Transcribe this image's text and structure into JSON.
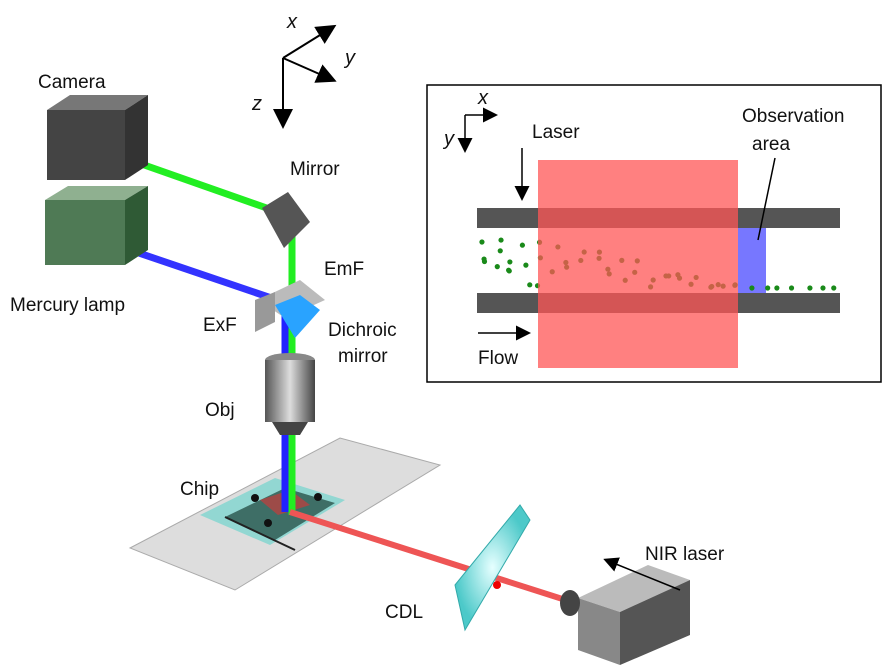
{
  "axes": {
    "x": "x",
    "y": "y",
    "z": "z"
  },
  "labels": {
    "camera": "Camera",
    "mirror": "Mirror",
    "emf": "EmF",
    "mercury_lamp": "Mercury lamp",
    "exf": "ExF",
    "dichroic_mirror": [
      "Dichroic",
      "mirror"
    ],
    "obj": "Obj",
    "chip": "Chip",
    "nir_laser": "NIR laser",
    "cdl": "CDL"
  },
  "inset": {
    "x": "x",
    "y": "y",
    "laser": "Laser",
    "observation_area": [
      "Observation",
      "area"
    ],
    "flow": "Flow"
  }
}
